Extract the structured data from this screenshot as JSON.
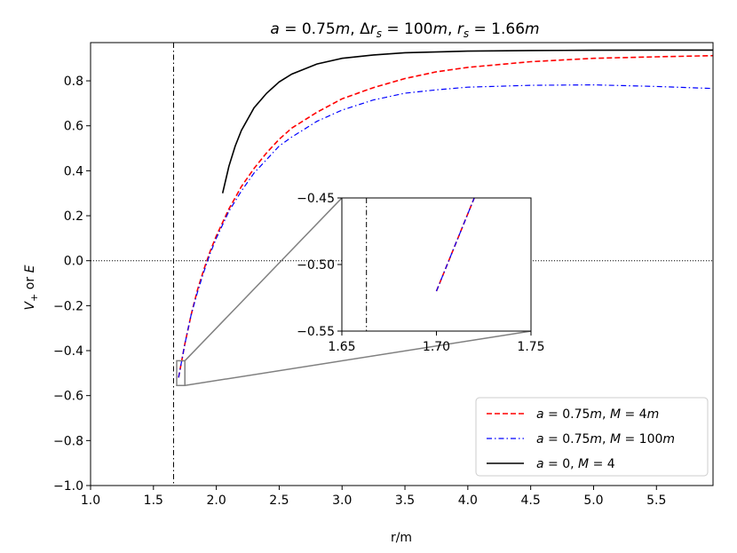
{
  "chart_data": {
    "type": "line",
    "title": "a = 0.75m, Δr_s = 100m, r_s = 1.66m",
    "xlabel": "r/m",
    "ylabel": "V+ or E",
    "xlim": [
      1.0,
      5.95
    ],
    "ylim": [
      -1.0,
      0.97
    ],
    "xticks": [
      "1.0",
      "1.5",
      "2.0",
      "2.5",
      "3.0",
      "3.5",
      "4.0",
      "4.5",
      "5.0",
      "5.5"
    ],
    "yticks": [
      "−1.0",
      "−0.8",
      "−0.6",
      "−0.4",
      "−0.2",
      "0.0",
      "0.2",
      "0.4",
      "0.6",
      "0.8"
    ],
    "vertical_line_x": 1.66,
    "horizontal_line_y": 0.0,
    "legend_placement": "lower-right",
    "grid": false,
    "series": [
      {
        "name": "a = 0.75m, M = 4m",
        "color": "#ff0000",
        "style": "dashed",
        "x": [
          1.7,
          1.75,
          1.8,
          1.85,
          1.9,
          1.95,
          2.0,
          2.1,
          2.2,
          2.3,
          2.4,
          2.5,
          2.6,
          2.8,
          3.0,
          3.25,
          3.5,
          3.75,
          4.0,
          4.5,
          5.0,
          5.5,
          5.95
        ],
        "y": [
          -0.52,
          -0.37,
          -0.24,
          -0.13,
          -0.04,
          0.04,
          0.11,
          0.23,
          0.33,
          0.41,
          0.48,
          0.54,
          0.59,
          0.66,
          0.72,
          0.77,
          0.81,
          0.84,
          0.86,
          0.885,
          0.9,
          0.907,
          0.912
        ]
      },
      {
        "name": "a = 0.75m, M = 100m",
        "color": "#0000ff",
        "style": "dashdot",
        "x": [
          1.7,
          1.75,
          1.8,
          1.85,
          1.9,
          1.95,
          2.0,
          2.1,
          2.2,
          2.3,
          2.4,
          2.5,
          2.6,
          2.8,
          3.0,
          3.25,
          3.5,
          3.75,
          4.0,
          4.5,
          5.0,
          5.5,
          5.95
        ],
        "y": [
          -0.52,
          -0.37,
          -0.24,
          -0.14,
          -0.05,
          0.03,
          0.1,
          0.22,
          0.31,
          0.39,
          0.45,
          0.51,
          0.55,
          0.62,
          0.67,
          0.715,
          0.745,
          0.76,
          0.772,
          0.78,
          0.782,
          0.775,
          0.766
        ]
      },
      {
        "name": "a = 0, M = 4",
        "color": "#000000",
        "style": "solid",
        "x": [
          2.05,
          2.1,
          2.15,
          2.2,
          2.3,
          2.4,
          2.5,
          2.6,
          2.8,
          3.0,
          3.25,
          3.5,
          4.0,
          4.5,
          5.0,
          5.5,
          5.95
        ],
        "y": [
          0.3,
          0.42,
          0.51,
          0.58,
          0.68,
          0.745,
          0.795,
          0.83,
          0.875,
          0.9,
          0.915,
          0.925,
          0.932,
          0.935,
          0.936,
          0.937,
          0.937
        ]
      }
    ],
    "inset": {
      "xlim": [
        1.65,
        1.75
      ],
      "ylim": [
        -0.55,
        -0.45
      ],
      "xticks": [
        "1.65",
        "1.70",
        "1.75"
      ],
      "yticks": [
        "−0.55",
        "−0.50",
        "−0.45"
      ],
      "zoom_box": {
        "xlim": [
          1.685,
          1.75
        ],
        "ylim": [
          -0.555,
          -0.445
        ]
      },
      "vertical_line_x": 1.663,
      "segment_x": [
        1.7,
        1.72
      ],
      "segment_y": [
        -0.52,
        -0.45
      ]
    }
  }
}
